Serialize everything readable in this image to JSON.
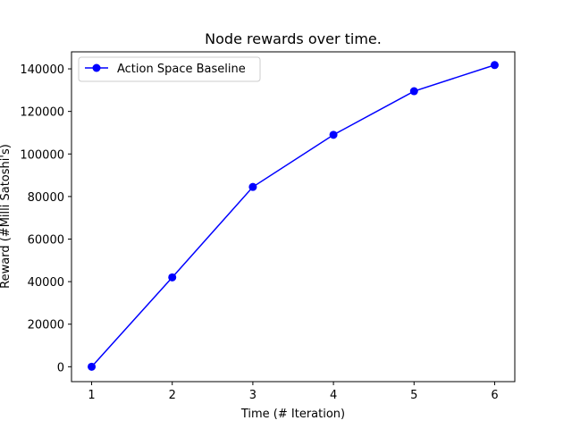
{
  "chart_data": {
    "type": "line",
    "title": "Node rewards over time.",
    "xlabel": "Time (# Iteration)",
    "ylabel": "Reward (#Milli Satoshi's)",
    "x": [
      1,
      2,
      3,
      4,
      5,
      6
    ],
    "xticks": [
      "1",
      "2",
      "3",
      "4",
      "5",
      "6"
    ],
    "yticks": [
      "0",
      "20000",
      "40000",
      "60000",
      "80000",
      "100000",
      "120000",
      "140000"
    ],
    "xlim": [
      0.75,
      6.25
    ],
    "ylim": [
      -7000,
      148000
    ],
    "grid": false,
    "legend_position": "top-left",
    "series": [
      {
        "name": "Action Space Baseline",
        "color": "#0000ff",
        "marker": "circle",
        "values": [
          0,
          42000,
          84500,
          109000,
          129500,
          141800
        ]
      }
    ]
  }
}
